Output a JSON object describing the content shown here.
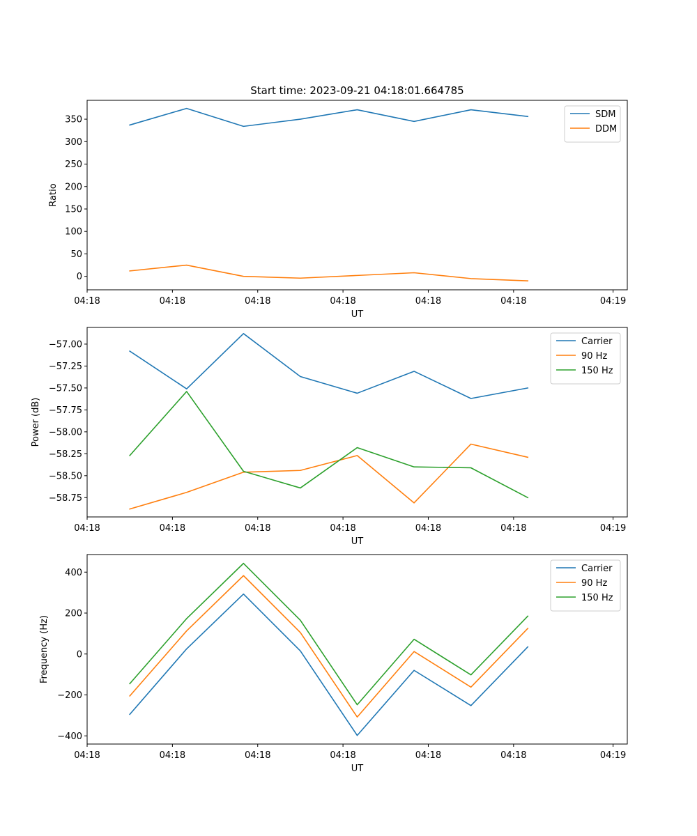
{
  "chart_data": [
    {
      "type": "line",
      "title": "Start time: 2023-09-21 04:18:01.664785",
      "xlabel": "UT",
      "ylabel": "Ratio",
      "xtick_labels": [
        "04:18",
        "04:18",
        "04:18",
        "04:18",
        "04:18",
        "04:18",
        "04:19"
      ],
      "xlim": [
        0,
        9.5
      ],
      "xticks": [
        0,
        1.5,
        3,
        4.5,
        6,
        7.5,
        9.25
      ],
      "x": [
        0.75,
        1.75,
        2.75,
        3.75,
        4.75,
        5.75,
        6.75,
        7.75
      ],
      "ylim": [
        -30,
        392
      ],
      "yticks": [
        0,
        50,
        100,
        150,
        200,
        250,
        300,
        350
      ],
      "legend_position": "top-right",
      "series": [
        {
          "name": "SDM",
          "color": "#1f77b4",
          "values": [
            337,
            374,
            334,
            350,
            371,
            345,
            371,
            356
          ]
        },
        {
          "name": "DDM",
          "color": "#ff7f0e",
          "values": [
            12,
            25,
            0,
            -4,
            2,
            8,
            -5,
            -10
          ]
        }
      ]
    },
    {
      "type": "line",
      "title": "",
      "xlabel": "UT",
      "ylabel": "Power (dB)",
      "xtick_labels": [
        "04:18",
        "04:18",
        "04:18",
        "04:18",
        "04:18",
        "04:18",
        "04:19"
      ],
      "xlim": [
        0,
        9.5
      ],
      "xticks": [
        0,
        1.5,
        3,
        4.5,
        6,
        7.5,
        9.25
      ],
      "x": [
        0.75,
        1.75,
        2.75,
        3.75,
        4.75,
        5.75,
        6.75,
        7.75
      ],
      "ylim": [
        -58.97,
        -56.81
      ],
      "yticks": [
        -58.75,
        -58.5,
        -58.25,
        -58.0,
        -57.75,
        -57.5,
        -57.25,
        -57.0
      ],
      "ytick_labels": [
        "−58.75",
        "−58.50",
        "−58.25",
        "−58.00",
        "−57.75",
        "−57.50",
        "−57.25",
        "−57.00"
      ],
      "legend_position": "top-right",
      "series": [
        {
          "name": "Carrier",
          "color": "#1f77b4",
          "values": [
            -57.08,
            -57.51,
            -56.88,
            -57.37,
            -57.56,
            -57.31,
            -57.62,
            -57.5
          ]
        },
        {
          "name": "90 Hz",
          "color": "#ff7f0e",
          "values": [
            -58.88,
            -58.69,
            -58.46,
            -58.44,
            -58.27,
            -58.81,
            -58.14,
            -58.29
          ]
        },
        {
          "name": "150 Hz",
          "color": "#2ca02c",
          "values": [
            -58.27,
            -57.54,
            -58.45,
            -58.64,
            -58.18,
            -58.4,
            -58.41,
            -58.75
          ]
        }
      ]
    },
    {
      "type": "line",
      "title": "",
      "xlabel": "UT",
      "ylabel": "Frequency (Hz)",
      "xtick_labels": [
        "04:18",
        "04:18",
        "04:18",
        "04:18",
        "04:18",
        "04:18",
        "04:19"
      ],
      "xlim": [
        0,
        9.5
      ],
      "xticks": [
        0,
        1.5,
        3,
        4.5,
        6,
        7.5,
        9.25
      ],
      "x": [
        0.75,
        1.75,
        2.75,
        3.75,
        4.75,
        5.75,
        6.75,
        7.75
      ],
      "ylim": [
        -440,
        486
      ],
      "yticks": [
        -400,
        -200,
        0,
        200,
        400
      ],
      "ytick_labels": [
        "−400",
        "−200",
        "0",
        "200",
        "400"
      ],
      "legend_position": "top-right",
      "series": [
        {
          "name": "Carrier",
          "color": "#1f77b4",
          "values": [
            -295,
            25,
            293,
            15,
            -398,
            -80,
            -252,
            35
          ]
        },
        {
          "name": "90 Hz",
          "color": "#ff7f0e",
          "values": [
            -205,
            113,
            383,
            105,
            -308,
            12,
            -162,
            125
          ]
        },
        {
          "name": "150 Hz",
          "color": "#2ca02c",
          "values": [
            -145,
            173,
            443,
            165,
            -248,
            72,
            -102,
            185
          ]
        }
      ]
    }
  ]
}
